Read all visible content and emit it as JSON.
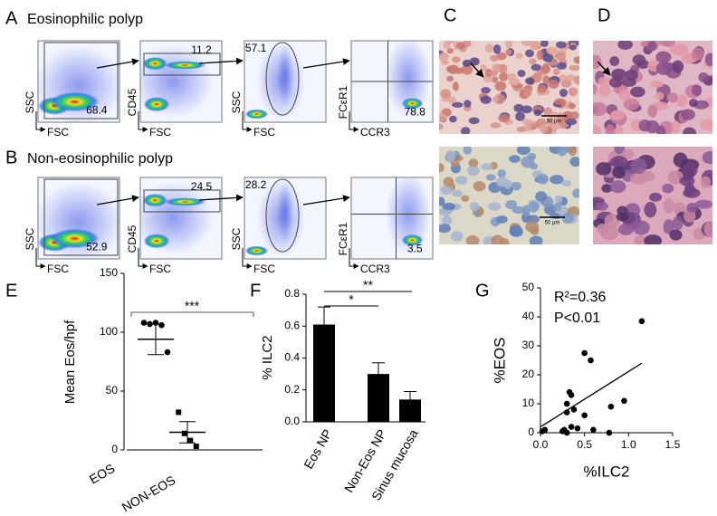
{
  "figure": {
    "flow": [
      {
        "letter": "A",
        "title": "Eosinophilic polyp",
        "plots": [
          {
            "y_label": "SSC",
            "x_label": "FSC",
            "gate": 68.4
          },
          {
            "y_label": "CD45",
            "x_label": "FSC",
            "gate": 11.2
          },
          {
            "y_label": "SSC",
            "x_label": "FSC",
            "gate": 57.1
          },
          {
            "y_label": "FCεR1",
            "x_label": "CCR3",
            "gate": 78.8
          }
        ]
      },
      {
        "letter": "B",
        "title": "Non-eosinophilic polyp",
        "plots": [
          {
            "y_label": "SSC",
            "x_label": "FSC",
            "gate": 52.9
          },
          {
            "y_label": "CD45",
            "x_label": "FSC",
            "gate": 24.5
          },
          {
            "y_label": "SSC",
            "x_label": "FSC",
            "gate": 28.2
          },
          {
            "y_label": "FCεR1",
            "x_label": "CCR3",
            "gate": 3.5
          }
        ]
      }
    ],
    "histology": [
      {
        "letter": "C",
        "scale_bars": [
          "50 µm",
          "50 µm"
        ]
      },
      {
        "letter": "D"
      }
    ]
  },
  "chart_data": [
    {
      "type": "dot",
      "letter": "E",
      "y_label": "Mean Eos/hpf",
      "categories": [
        "EOS",
        "NON-EOS"
      ],
      "values": [
        [
          108,
          107,
          108,
          106,
          83
        ],
        [
          32,
          14,
          8,
          3
        ]
      ],
      "mean": [
        94,
        15
      ],
      "sem": [
        13,
        9
      ],
      "markers": [
        "circle",
        "square"
      ],
      "color": "#000000",
      "ylim": [
        0,
        150
      ],
      "yticks": [
        0,
        50,
        100,
        150
      ],
      "significance": [
        "***"
      ]
    },
    {
      "type": "bar",
      "letter": "F",
      "y_label": "% ILC2",
      "categories": [
        "Eos NP",
        "Non-Eos NP",
        "Sinus mucosa"
      ],
      "values": [
        0.61,
        0.3,
        0.14
      ],
      "errors": [
        0.11,
        0.07,
        0.05
      ],
      "color": "#000000",
      "ylim": [
        0,
        0.8
      ],
      "yticks": [
        {
          "value": 0,
          "label": "0.0"
        },
        0.2,
        0.4,
        0.6,
        0.8
      ],
      "significance": [
        "*",
        "**"
      ]
    },
    {
      "type": "scatter",
      "letter": "G",
      "x_label": "%ILC2",
      "y_label": "%EOS",
      "annotations": [
        "R²=0.36",
        "P<0.01"
      ],
      "x": [
        1.15,
        0.5,
        0.57,
        0.33,
        0.35,
        0.3,
        0.95,
        0.8,
        0.38,
        0.3,
        0.5,
        0.35,
        0.27,
        0.42,
        0.6,
        0.05,
        0.02,
        0.25,
        0.78,
        0.3
      ],
      "values": [
        38.5,
        27.5,
        25,
        14,
        13,
        10,
        11,
        9,
        8,
        7,
        6,
        2,
        1,
        1.5,
        1,
        1,
        0.5,
        0.5,
        0,
        0
      ],
      "trendline": {
        "x": [
          0,
          1.15
        ],
        "y": [
          2,
          24
        ]
      },
      "color": "#000000",
      "xlim": [
        0,
        1.5
      ],
      "xticks": [
        {
          "value": 0,
          "label": "0.0"
        },
        0.5,
        {
          "value": 1,
          "label": "1.0"
        },
        1.5
      ],
      "ylim": [
        0,
        50
      ],
      "yticks": [
        0,
        10,
        20,
        30,
        40,
        50
      ]
    }
  ]
}
